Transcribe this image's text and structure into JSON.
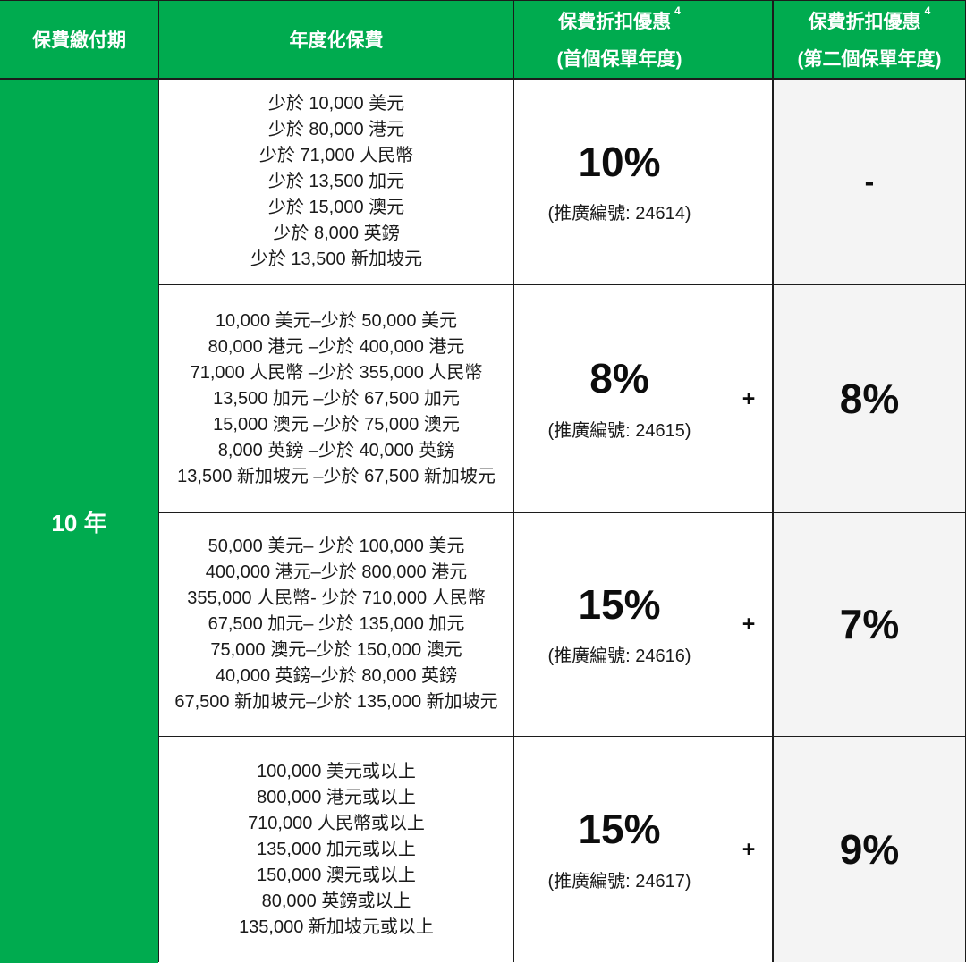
{
  "table": {
    "header": {
      "period": "保費繳付期",
      "premium": "年度化保費",
      "discount1": {
        "title": "保費折扣優惠",
        "sup": "4",
        "subtitle": "(首個保單年度)"
      },
      "plus_header": "",
      "discount2": {
        "title": "保費折扣優惠",
        "sup": "4",
        "subtitle": "(第二個保單年度)"
      }
    },
    "payment_period": "10 年",
    "rows": [
      {
        "tiers": [
          "少於 10,000 美元",
          "少於 80,000 港元",
          "少於 71,000 人民幣",
          "少於 13,500 加元",
          "少於 15,000 澳元",
          "少於 8,000 英鎊",
          "少於 13,500 新加坡元"
        ],
        "first_year_discount": "10%",
        "promo": "(推廣編號: 24614)",
        "plus": "",
        "second_year_discount": "-"
      },
      {
        "tiers": [
          "10,000 美元–少於 50,000 美元",
          "80,000 港元 –少於 400,000 港元",
          "71,000 人民幣 –少於 355,000 人民幣",
          "13,500 加元 –少於 67,500 加元",
          "15,000 澳元 –少於 75,000 澳元",
          "8,000 英鎊 –少於 40,000 英鎊",
          "13,500 新加坡元 –少於 67,500 新加坡元"
        ],
        "first_year_discount": "8%",
        "promo": "(推廣編號: 24615)",
        "plus": "+",
        "second_year_discount": "8%"
      },
      {
        "tiers": [
          "50,000 美元– 少於 100,000 美元",
          "400,000 港元–少於 800,000 港元",
          "355,000 人民幣- 少於 710,000 人民幣",
          "67,500 加元– 少於 135,000 加元",
          "75,000 澳元–少於 150,000 澳元",
          "40,000 英鎊–少於 80,000 英鎊",
          "67,500 新加坡元–少於 135,000 新加坡元"
        ],
        "first_year_discount": "15%",
        "promo": "(推廣編號: 24616)",
        "plus": "+",
        "second_year_discount": "7%"
      },
      {
        "tiers": [
          "100,000 美元或以上",
          "800,000 港元或以上",
          "710,000 人民幣或以上",
          "135,000 加元或以上",
          "150,000 澳元或以上",
          "80,000 英鎊或以上",
          "135,000 新加坡元或以上"
        ],
        "first_year_discount": "15%",
        "promo": "(推廣編號: 24617)",
        "plus": "+",
        "second_year_discount": "9%"
      }
    ]
  },
  "colors": {
    "header_green": "#00AB4F",
    "second_year_column_bg": "#F4F4F4",
    "grid_line": "#1C1C1C"
  }
}
